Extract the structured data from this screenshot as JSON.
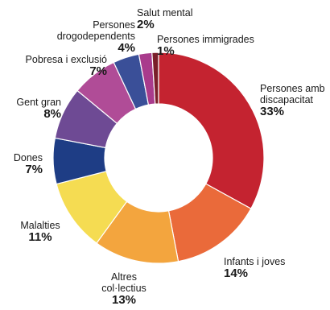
{
  "chart_data": {
    "type": "pie",
    "donut": true,
    "start_angle_deg": 0,
    "direction": "clockwise",
    "legend": "none",
    "slices": [
      {
        "label": "Persones amb discapacitat",
        "value": 33,
        "pct_text": "33%",
        "color": "#c42330"
      },
      {
        "label": "Infants i joves",
        "value": 14,
        "pct_text": "14%",
        "color": "#ea6a3a"
      },
      {
        "label": "Altres col·lectius",
        "value": 13,
        "pct_text": "13%",
        "color": "#f3a53e"
      },
      {
        "label": "Malalties",
        "value": 11,
        "pct_text": "11%",
        "color": "#f5dc52"
      },
      {
        "label": "Dones",
        "value": 7,
        "pct_text": "7%",
        "color": "#1e3d85"
      },
      {
        "label": "Gent gran",
        "value": 8,
        "pct_text": "8%",
        "color": "#6e4a94"
      },
      {
        "label": "Pobresa i exclusió",
        "value": 7,
        "pct_text": "7%",
        "color": "#b04c97"
      },
      {
        "label": "Persones drogodependents",
        "value": 4,
        "pct_text": "4%",
        "color": "#3a4f98"
      },
      {
        "label": "Salut mental",
        "value": 2,
        "pct_text": "2%",
        "color": "#a93b8c"
      },
      {
        "label": "Persones immigrades",
        "value": 1,
        "pct_text": "1%",
        "color": "#7a1f2a"
      }
    ]
  }
}
